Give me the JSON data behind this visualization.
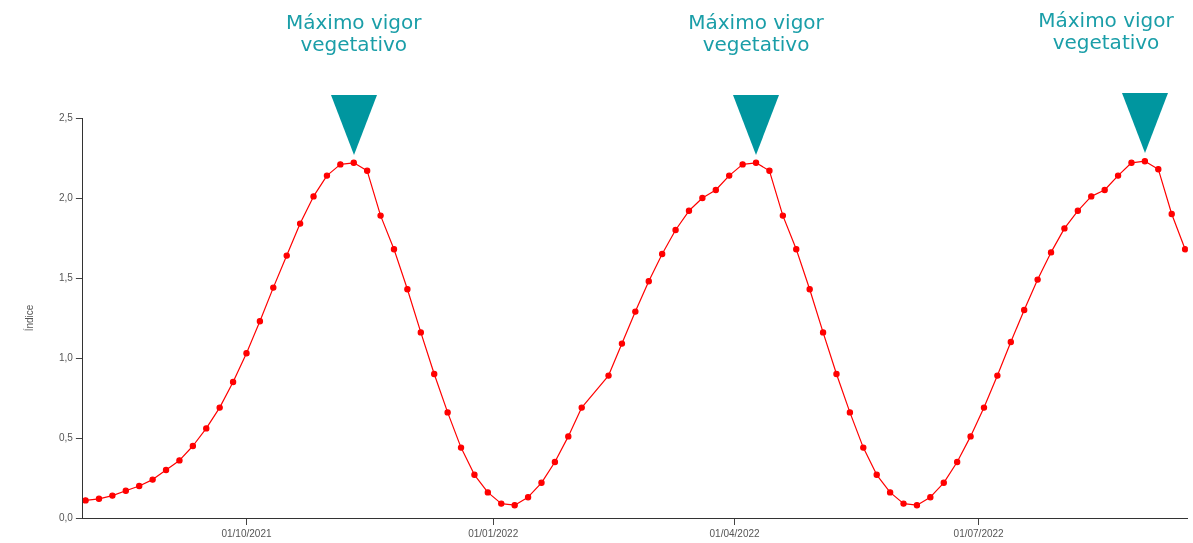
{
  "chart_data": {
    "type": "line",
    "ylabel": "Índice",
    "x": [
      "2021-08-02",
      "2021-08-07",
      "2021-08-12",
      "2021-08-17",
      "2021-08-22",
      "2021-08-27",
      "2021-09-01",
      "2021-09-06",
      "2021-09-11",
      "2021-09-16",
      "2021-09-21",
      "2021-09-26",
      "2021-10-01",
      "2021-10-06",
      "2021-10-11",
      "2021-10-16",
      "2021-10-21",
      "2021-10-26",
      "2021-10-31",
      "2021-11-05",
      "2021-11-10",
      "2021-11-15",
      "2021-11-20",
      "2021-11-25",
      "2021-11-30",
      "2021-12-05",
      "2021-12-10",
      "2021-12-15",
      "2021-12-20",
      "2021-12-25",
      "2021-12-30",
      "2022-01-04",
      "2022-01-09",
      "2022-01-14",
      "2022-01-19",
      "2022-01-24",
      "2022-01-29",
      "2022-02-03",
      "2022-02-13",
      "2022-02-18",
      "2022-02-23",
      "2022-02-28",
      "2022-03-05",
      "2022-03-10",
      "2022-03-15",
      "2022-03-20",
      "2022-03-25",
      "2022-03-30",
      "2022-04-04",
      "2022-04-09",
      "2022-04-14",
      "2022-04-19",
      "2022-04-24",
      "2022-04-29",
      "2022-05-04",
      "2022-05-09",
      "2022-05-14",
      "2022-05-19",
      "2022-05-24",
      "2022-05-29",
      "2022-06-03",
      "2022-06-08",
      "2022-06-13",
      "2022-06-18",
      "2022-06-23",
      "2022-06-28",
      "2022-07-03",
      "2022-07-08",
      "2022-07-13",
      "2022-07-18",
      "2022-07-23",
      "2022-07-28",
      "2022-08-02",
      "2022-08-07",
      "2022-08-12",
      "2022-08-17",
      "2022-08-22",
      "2022-08-27",
      "2022-09-01",
      "2022-09-06",
      "2022-09-11",
      "2022-09-16"
    ],
    "series": [
      {
        "color": "#ff0000",
        "values": [
          0.11,
          0.12,
          0.14,
          0.17,
          0.2,
          0.24,
          0.3,
          0.36,
          0.45,
          0.56,
          0.69,
          0.85,
          1.03,
          1.23,
          1.44,
          1.64,
          1.84,
          2.01,
          2.14,
          2.21,
          2.22,
          2.17,
          1.89,
          1.68,
          1.43,
          1.16,
          0.9,
          0.66,
          0.44,
          0.27,
          0.16,
          0.09,
          0.08,
          0.13,
          0.22,
          0.35,
          0.51,
          0.69,
          0.89,
          1.09,
          1.29,
          1.48,
          1.65,
          1.8,
          1.92,
          2.0,
          2.05,
          2.14,
          2.21,
          2.22,
          2.17,
          1.89,
          1.68,
          1.43,
          1.16,
          0.9,
          0.66,
          0.44,
          0.27,
          0.16,
          0.09,
          0.08,
          0.13,
          0.22,
          0.35,
          0.51,
          0.69,
          0.89,
          1.1,
          1.3,
          1.49,
          1.66,
          1.81,
          1.92,
          2.01,
          2.05,
          2.14,
          2.22,
          2.23,
          2.18,
          1.9,
          1.68
        ]
      }
    ],
    "xlim": [
      "2021-08-01",
      "2022-09-17"
    ],
    "xticks": [
      {
        "value": "2021-10-01",
        "label": "01/10/2021"
      },
      {
        "value": "2022-01-01",
        "label": "01/01/2022"
      },
      {
        "value": "2022-04-01",
        "label": "01/04/2022"
      },
      {
        "value": "2022-07-01",
        "label": "01/07/2022"
      }
    ],
    "ylim": [
      0,
      2.5
    ],
    "yticks": [
      {
        "value": 0,
        "label": "0,0"
      },
      {
        "value": 0.5,
        "label": "0,5"
      },
      {
        "value": 1,
        "label": "1,0"
      },
      {
        "value": 1.5,
        "label": "1,5"
      },
      {
        "value": 2,
        "label": "2,0"
      },
      {
        "value": 2.5,
        "label": "2,5"
      }
    ],
    "annotations": [
      "Máximo vigor vegetativo",
      "Máximo vigor vegetativo",
      "Máximo vigor vegetativo"
    ],
    "grid": false,
    "legend": false,
    "marker": "circle",
    "line_style": "solid"
  }
}
